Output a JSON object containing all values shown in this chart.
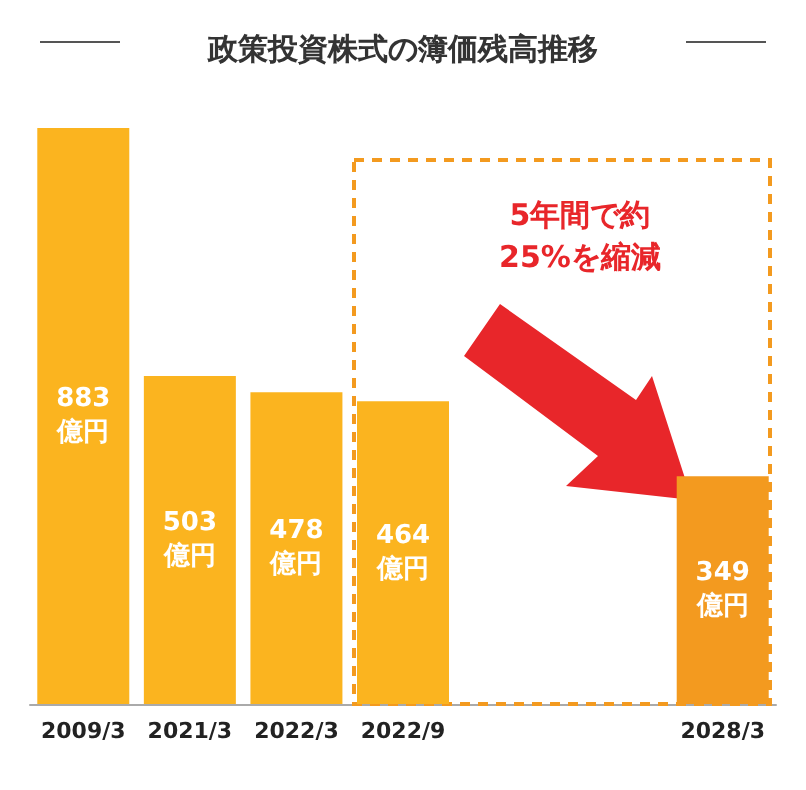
{
  "chart_data": {
    "type": "bar",
    "title": "政策投資株式の簿価残高推移",
    "categories": [
      "2009/3",
      "2021/3",
      "2022/3",
      "2022/9",
      null,
      null,
      "2028/3"
    ],
    "values": [
      883,
      503,
      478,
      464,
      null,
      null,
      349
    ],
    "colors": [
      "#fbb41f",
      "#fbb41f",
      "#fbb41f",
      "#fbb41f",
      "#fbb41f",
      "#fbb41f",
      "#f39a1f"
    ],
    "value_labels": [
      "883\n億円",
      "503\n億円",
      "478\n億円",
      "464\n億円",
      null,
      null,
      "349\n億円"
    ],
    "annotations": [
      "5年間で約25%を縮減"
    ]
  }
}
